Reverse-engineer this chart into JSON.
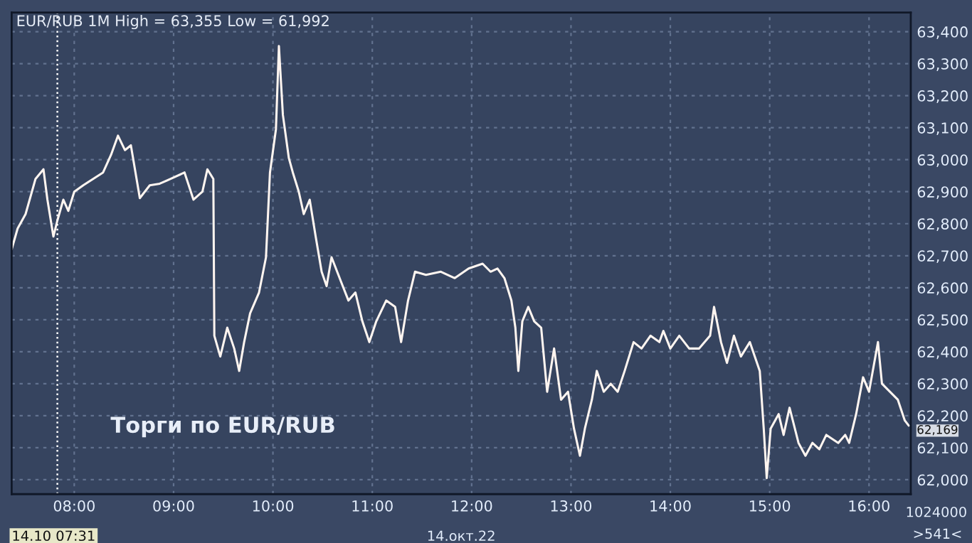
{
  "chart_data": {
    "type": "line",
    "title": "EUR/RUB 1M High = 63,355 Low = 61,992",
    "x": [
      7.37,
      7.43,
      7.51,
      7.61,
      7.69,
      7.73,
      7.79,
      7.83,
      7.89,
      7.94,
      8.0,
      8.09,
      8.19,
      8.29,
      8.37,
      8.44,
      8.51,
      8.57,
      8.66,
      8.76,
      8.86,
      8.97,
      9.11,
      9.2,
      9.29,
      9.34,
      9.4,
      9.41,
      9.47,
      9.54,
      9.61,
      9.66,
      9.71,
      9.77,
      9.86,
      9.93,
      9.97,
      10.03,
      10.06,
      10.1,
      10.16,
      10.2,
      10.26,
      10.31,
      10.37,
      10.43,
      10.49,
      10.54,
      10.59,
      10.69,
      10.76,
      10.83,
      10.9,
      10.97,
      11.04,
      11.14,
      11.23,
      11.29,
      11.36,
      11.43,
      11.54,
      11.69,
      11.83,
      11.97,
      12.11,
      12.19,
      12.26,
      12.33,
      12.4,
      12.44,
      12.47,
      12.51,
      12.57,
      12.63,
      12.7,
      12.76,
      12.83,
      12.9,
      12.97,
      13.03,
      13.09,
      13.14,
      13.21,
      13.26,
      13.33,
      13.4,
      13.47,
      13.54,
      13.63,
      13.71,
      13.8,
      13.89,
      13.93,
      14.0,
      14.09,
      14.19,
      14.29,
      14.4,
      14.44,
      14.51,
      14.57,
      14.64,
      14.71,
      14.8,
      14.9,
      14.94,
      14.97,
      15.01,
      15.09,
      15.14,
      15.2,
      15.29,
      15.36,
      15.43,
      15.5,
      15.57,
      15.69,
      15.76,
      15.8,
      15.87,
      15.94,
      16.0,
      16.09,
      16.13,
      16.21,
      16.29,
      16.36,
      16.4
    ],
    "series": [
      {
        "color": "#fff5f0",
        "values": [
          62720,
          62785,
          62830,
          62940,
          62970,
          62875,
          62760,
          62810,
          62875,
          62840,
          62900,
          62920,
          62940,
          62960,
          63015,
          63075,
          63030,
          63045,
          62880,
          62920,
          62925,
          62940,
          62960,
          62875,
          62900,
          62970,
          62940,
          62450,
          62385,
          62475,
          62410,
          62340,
          62430,
          62520,
          62585,
          62695,
          62960,
          63095,
          63355,
          63140,
          63005,
          62960,
          62900,
          62830,
          62875,
          62760,
          62650,
          62605,
          62695,
          62615,
          62560,
          62585,
          62495,
          62430,
          62495,
          62560,
          62540,
          62430,
          62560,
          62650,
          62640,
          62650,
          62630,
          62660,
          62675,
          62650,
          62660,
          62630,
          62560,
          62475,
          62340,
          62495,
          62540,
          62495,
          62475,
          62275,
          62410,
          62250,
          62275,
          62160,
          62075,
          62160,
          62250,
          62340,
          62275,
          62300,
          62275,
          62340,
          62430,
          62410,
          62450,
          62430,
          62465,
          62410,
          62450,
          62410,
          62410,
          62450,
          62540,
          62430,
          62365,
          62450,
          62385,
          62430,
          62340,
          62160,
          62005,
          62160,
          62205,
          62140,
          62225,
          62115,
          62075,
          62115,
          62095,
          62140,
          62115,
          62140,
          62115,
          62205,
          62320,
          62275,
          62430,
          62300,
          62275,
          62250,
          62185,
          62169
        ]
      }
    ],
    "xlim": [
      7.37,
      16.42
    ],
    "xticks": [
      {
        "value": 8,
        "label": "08:00"
      },
      {
        "value": 9,
        "label": "09:00"
      },
      {
        "value": 10,
        "label": "10:00"
      },
      {
        "value": 11,
        "label": "11:00"
      },
      {
        "value": 12,
        "label": "12:00"
      },
      {
        "value": 13,
        "label": "13:00"
      },
      {
        "value": 14,
        "label": "14:00"
      },
      {
        "value": 15,
        "label": "15:00"
      },
      {
        "value": 16,
        "label": "16:00"
      }
    ],
    "ylim": [
      61955,
      63460
    ],
    "yticks": [
      {
        "value": 62000,
        "label": "62,000"
      },
      {
        "value": 62100,
        "label": "62,100"
      },
      {
        "value": 62200,
        "label": "62,200"
      },
      {
        "value": 62300,
        "label": "62,300"
      },
      {
        "value": 62400,
        "label": "62,400"
      },
      {
        "value": 62500,
        "label": "62,500"
      },
      {
        "value": 62600,
        "label": "62,600"
      },
      {
        "value": 62700,
        "label": "62,700"
      },
      {
        "value": 62800,
        "label": "62,800"
      },
      {
        "value": 62900,
        "label": "62,900"
      },
      {
        "value": 63000,
        "label": "63,000"
      },
      {
        "value": 63100,
        "label": "63,100"
      },
      {
        "value": 63200,
        "label": "63,200"
      },
      {
        "value": 63300,
        "label": "63,300"
      },
      {
        "value": 63400,
        "label": "63,400"
      }
    ],
    "ref_lines": [
      {
        "axis": "x",
        "value": 7.83,
        "color": "#ffffff",
        "line_style": "dotted"
      }
    ],
    "annotations": [
      "Торги по EUR/RUB",
      "14.10 07:31",
      {
        "text": "62,169",
        "x": 16.4,
        "y": 62169
      },
      "14.окт.22",
      "1024000",
      ">541<"
    ],
    "grid": true,
    "line_style": "solid",
    "marker": "none"
  }
}
